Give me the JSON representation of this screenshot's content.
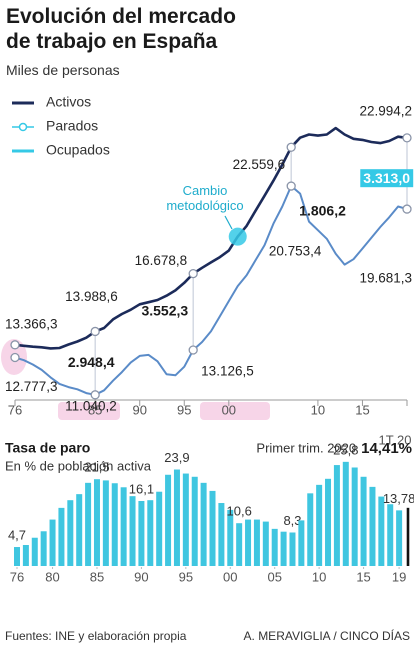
{
  "chart_data": [
    {
      "type": "line",
      "title": "Evolución del mercado de trabajo en España",
      "subtitle": "Miles de personas",
      "x": [
        1976,
        1977,
        1978,
        1979,
        1980,
        1981,
        1982,
        1983,
        1984,
        1985,
        1986,
        1987,
        1988,
        1989,
        1990,
        1991,
        1992,
        1993,
        1994,
        1995,
        1996,
        1997,
        1998,
        1999,
        2000,
        2001,
        2002,
        2003,
        2004,
        2005,
        2006,
        2007,
        2008,
        2009,
        2010,
        2011,
        2012,
        2013,
        2014,
        2015,
        2016,
        2017,
        2018,
        2019,
        2020
      ],
      "series": [
        {
          "name": "Activos",
          "color": "#1c2b5a",
          "kind": "line",
          "values": [
            13366.3,
            13320,
            13280,
            13250,
            13200,
            13220,
            13380,
            13520,
            13700,
            13988.6,
            14150,
            14550,
            14800,
            15000,
            15250,
            15350,
            15450,
            15650,
            15900,
            16250,
            16678.8,
            16950,
            17200,
            17450,
            17750,
            18400,
            18900,
            19600,
            20300,
            21000,
            21750,
            22559.6,
            23000,
            23150,
            23100,
            23150,
            23450,
            23150,
            22950,
            22900,
            22800,
            22750,
            22850,
            23050,
            22994.2
          ],
          "value_labels": [
            "13.366,3",
            null,
            null,
            null,
            null,
            null,
            null,
            null,
            null,
            "13.988,6",
            null,
            null,
            null,
            null,
            null,
            null,
            null,
            null,
            null,
            null,
            "16.678,8",
            null,
            null,
            null,
            null,
            null,
            null,
            null,
            null,
            null,
            null,
            "22.559,6",
            null,
            null,
            null,
            null,
            null,
            null,
            null,
            null,
            null,
            null,
            null,
            null,
            "22.994,2"
          ]
        },
        {
          "name": "Parados",
          "color": "#35c9e6",
          "kind": "gap",
          "values": [
            null,
            null,
            null,
            null,
            null,
            null,
            null,
            null,
            null,
            2948.4,
            null,
            null,
            null,
            null,
            null,
            null,
            null,
            null,
            null,
            null,
            3552.3,
            null,
            null,
            null,
            null,
            null,
            null,
            null,
            null,
            null,
            null,
            1806.2,
            null,
            null,
            null,
            null,
            null,
            null,
            null,
            null,
            null,
            null,
            null,
            null,
            3313.0
          ],
          "value_labels": [
            null,
            null,
            null,
            null,
            null,
            null,
            null,
            null,
            null,
            "2.948,4",
            null,
            null,
            null,
            null,
            null,
            null,
            null,
            null,
            null,
            null,
            "3.552,3",
            null,
            null,
            null,
            null,
            null,
            null,
            null,
            null,
            null,
            null,
            "1.806,2",
            null,
            null,
            null,
            null,
            null,
            null,
            null,
            null,
            null,
            null,
            null,
            null,
            "3.313,0"
          ]
        },
        {
          "name": "Ocupados",
          "color": "#5a8bc8",
          "kind": "line",
          "values": [
            12777.3,
            12650,
            12450,
            12200,
            11850,
            11550,
            11400,
            11300,
            11120,
            11040.2,
            11250,
            11700,
            12100,
            12550,
            12850,
            12900,
            12600,
            12000,
            11950,
            12350,
            13126.5,
            13500,
            14000,
            14700,
            15400,
            16100,
            16600,
            17300,
            18000,
            19000,
            19800,
            20753.4,
            20400,
            19100,
            18700,
            18300,
            17600,
            17100,
            17350,
            17850,
            18350,
            18850,
            19300,
            19800,
            19681.3
          ],
          "value_labels": [
            "12.777,3",
            null,
            null,
            null,
            null,
            null,
            null,
            null,
            null,
            "11.040,2",
            null,
            null,
            null,
            null,
            null,
            null,
            null,
            null,
            null,
            null,
            "13.126,5",
            null,
            null,
            null,
            null,
            null,
            null,
            null,
            null,
            null,
            null,
            "20.753,4",
            null,
            null,
            null,
            null,
            null,
            null,
            null,
            null,
            null,
            null,
            null,
            null,
            "19.681,3"
          ]
        }
      ],
      "xlim": [
        1976,
        2020
      ],
      "ylim": [
        10800,
        23500
      ],
      "xticks": [
        {
          "value": 1976,
          "label": "76"
        },
        {
          "value": 1985,
          "label": "85"
        },
        {
          "value": 1990,
          "label": "90"
        },
        {
          "value": 1995,
          "label": "95"
        },
        {
          "value": 2000,
          "label": "00"
        },
        {
          "value": 2010,
          "label": "10"
        },
        {
          "value": 2015,
          "label": "15"
        },
        {
          "value": 2020,
          "label": "1T 20"
        }
      ],
      "annotation": {
        "text": "Cambio metodológico",
        "x": 2001
      }
    },
    {
      "type": "bar",
      "title": "Tasa de paro",
      "subtitle": "En % de población activa",
      "x": [
        1976,
        1977,
        1978,
        1979,
        1980,
        1981,
        1982,
        1983,
        1984,
        1985,
        1986,
        1987,
        1988,
        1989,
        1990,
        1991,
        1992,
        1993,
        1994,
        1995,
        1996,
        1997,
        1998,
        1999,
        2000,
        2001,
        2002,
        2003,
        2004,
        2005,
        2006,
        2007,
        2008,
        2009,
        2010,
        2011,
        2012,
        2013,
        2014,
        2015,
        2016,
        2017,
        2018,
        2019
      ],
      "values": [
        4.7,
        5.2,
        7.0,
        8.6,
        11.5,
        14.4,
        16.3,
        17.8,
        20.6,
        21.5,
        21.2,
        20.5,
        19.5,
        17.3,
        16.1,
        16.3,
        18.4,
        22.6,
        23.9,
        22.9,
        22.1,
        20.6,
        18.6,
        15.6,
        13.9,
        10.6,
        11.5,
        11.5,
        11.0,
        9.2,
        8.5,
        8.3,
        11.3,
        18.0,
        20.1,
        21.6,
        25.0,
        25.8,
        24.4,
        22.1,
        19.6,
        17.2,
        15.3,
        13.78
      ],
      "value_labels": [
        "4,7",
        null,
        null,
        null,
        null,
        null,
        null,
        null,
        null,
        "21,5",
        null,
        null,
        null,
        null,
        "16,1",
        null,
        null,
        null,
        "23,9",
        null,
        null,
        null,
        null,
        null,
        null,
        "10,6",
        null,
        null,
        null,
        null,
        null,
        "8,3",
        null,
        null,
        null,
        null,
        null,
        "25,8",
        null,
        null,
        null,
        null,
        null,
        "13,78"
      ],
      "color": "#3fc6e0",
      "ylim": [
        0,
        27
      ],
      "xlim": [
        1976,
        2020
      ],
      "xticks": [
        {
          "value": 1976,
          "label": "76"
        },
        {
          "value": 1980,
          "label": "80"
        },
        {
          "value": 1985,
          "label": "85"
        },
        {
          "value": 1990,
          "label": "90"
        },
        {
          "value": 1995,
          "label": "95"
        },
        {
          "value": 2000,
          "label": "00"
        },
        {
          "value": 2005,
          "label": "05"
        },
        {
          "value": 2010,
          "label": "10"
        },
        {
          "value": 2015,
          "label": "15"
        },
        {
          "value": 2019,
          "label": "19"
        }
      ],
      "latest": {
        "label": "Primer trim. 2020",
        "x": 2020,
        "value": 14.41,
        "value_label": "14,41%",
        "color": "#111111"
      }
    }
  ],
  "footer": {
    "source": "Fuentes: INE y elaboración propia",
    "credit": "A. MERAVIGLIA / CINCO DÍAS"
  }
}
